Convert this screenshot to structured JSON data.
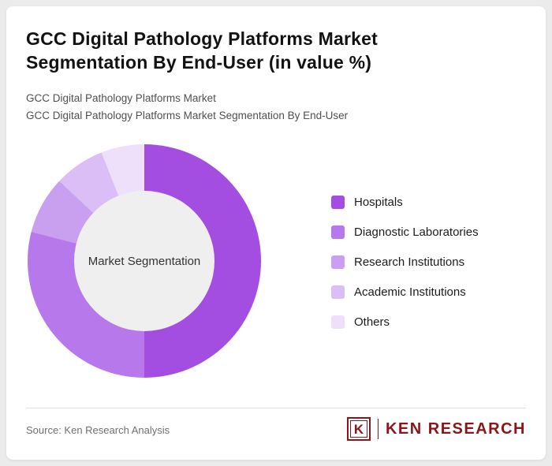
{
  "header": {
    "title_line1": "GCC Digital Pathology Platforms Market",
    "title_line2": "Segmentation By End-User (in value %)",
    "subtitle_line1": "GCC Digital Pathology Platforms Market",
    "subtitle_line2": "GCC Digital Pathology Platforms Market Segmentation By End-User"
  },
  "chart_data": {
    "type": "pie",
    "donut": true,
    "title": "GCC Digital Pathology Platforms Market Segmentation By End-User (in value %)",
    "center_label": "Market Segmentation",
    "categories": [
      "Hospitals",
      "Diagnostic Laboratories",
      "Research Institutions",
      "Academic Institutions",
      "Others"
    ],
    "values": [
      50,
      29,
      8,
      7,
      6
    ],
    "colors": [
      "#a34ee0",
      "#b678ea",
      "#c9a0f0",
      "#dcbef6",
      "#eee0fb"
    ],
    "legend_position": "right",
    "start_angle_deg": 0,
    "hole_color": "#efefef"
  },
  "footer": {
    "source": "Source: Ken Research Analysis",
    "logo_k": "K",
    "logo_text": "KEN RESEARCH"
  },
  "colors": {
    "brand_red": "#8a161a",
    "page_bg": "#ebebeb",
    "card_bg": "#ffffff"
  }
}
